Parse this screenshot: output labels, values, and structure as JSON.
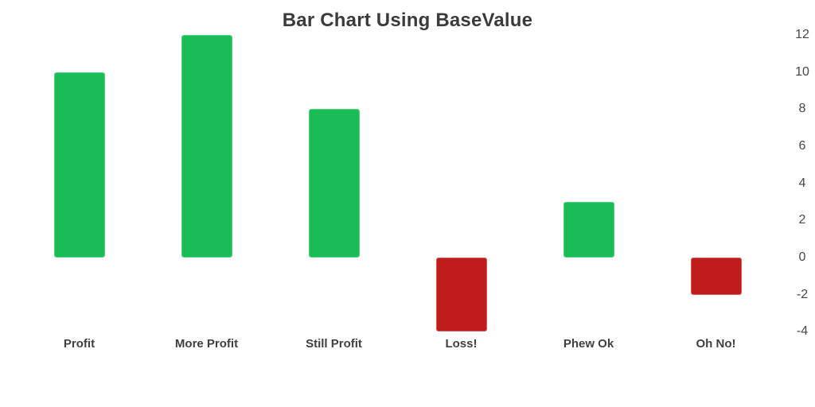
{
  "chart_data": {
    "type": "bar",
    "title": "Bar Chart Using BaseValue",
    "categories": [
      "Profit",
      "More Profit",
      "Still Profit",
      "Loss!",
      "Phew Ok",
      "Oh No!"
    ],
    "values": [
      10,
      12,
      8,
      -4,
      3,
      -2
    ],
    "base_value": 0,
    "xlabel": "",
    "ylabel": "",
    "ylim": [
      -4,
      12
    ],
    "y_ticks": [
      12,
      10,
      8,
      6,
      4,
      2,
      0,
      -2,
      -4
    ],
    "axis_side": "right",
    "grid": false,
    "legend": "none",
    "colors": {
      "positive_fill": "#1abc55",
      "positive_border": "#56d287",
      "negative_fill": "#c11c1c",
      "negative_border": "#d45b5b",
      "title_text": "#3b3b3b",
      "category_text": "#3f3f3f",
      "axis_text": "#474747",
      "background": "#ffffff"
    }
  }
}
